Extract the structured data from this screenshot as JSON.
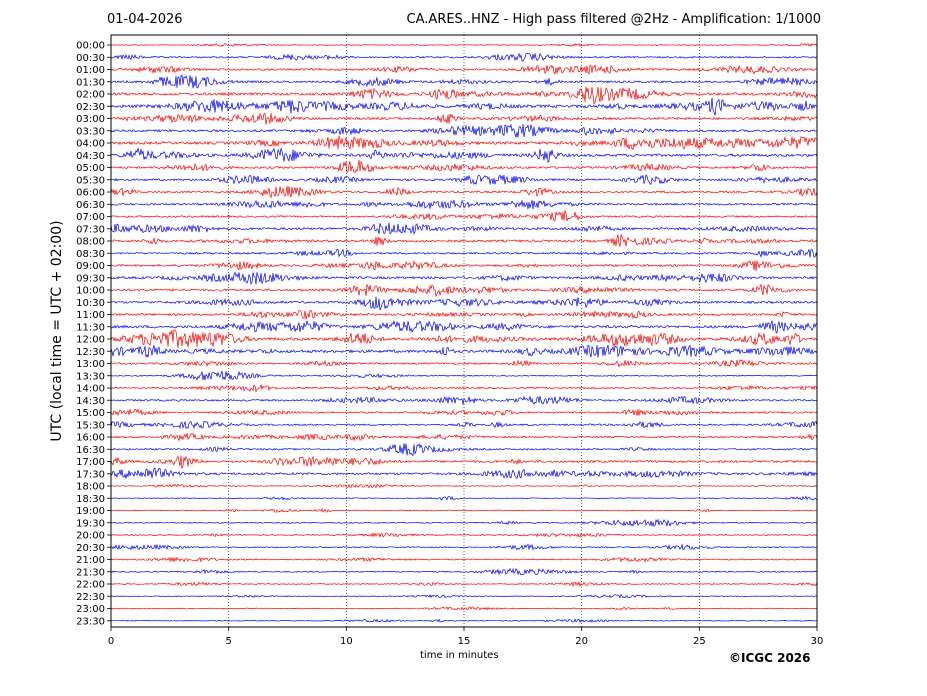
{
  "header": {
    "date": "01-04-2026",
    "title": "CA.ARES..HNZ - High pass filtered @2Hz - Amplification: 1/1000"
  },
  "footer": {
    "credit": "©ICGC 2026"
  },
  "chart_data": {
    "type": "line",
    "subtype": "helicorder",
    "xlabel": "time in minutes",
    "ylabel": "UTC (local time = UTC + 02:00)",
    "xlim": [
      0,
      30
    ],
    "x_ticks": [
      0,
      5,
      10,
      15,
      20,
      25,
      30
    ],
    "grid": "vertical dotted lines at x ticks",
    "trace_colors": [
      "#ff0000",
      "#0000ff"
    ],
    "rows": [
      {
        "label": "00:00",
        "activity": 0.05
      },
      {
        "label": "00:30",
        "activity": 0.35
      },
      {
        "label": "01:00",
        "activity": 0.45
      },
      {
        "label": "01:30",
        "activity": 0.45
      },
      {
        "label": "02:00",
        "activity": 0.7
      },
      {
        "label": "02:30",
        "activity": 0.85
      },
      {
        "label": "03:00",
        "activity": 0.6
      },
      {
        "label": "03:30",
        "activity": 0.55
      },
      {
        "label": "04:00",
        "activity": 0.75
      },
      {
        "label": "04:30",
        "activity": 0.7
      },
      {
        "label": "05:00",
        "activity": 0.5
      },
      {
        "label": "05:30",
        "activity": 0.5
      },
      {
        "label": "06:00",
        "activity": 0.45
      },
      {
        "label": "06:30",
        "activity": 0.45
      },
      {
        "label": "07:00",
        "activity": 0.4
      },
      {
        "label": "07:30",
        "activity": 0.6
      },
      {
        "label": "08:00",
        "activity": 0.6
      },
      {
        "label": "08:30",
        "activity": 0.4
      },
      {
        "label": "09:00",
        "activity": 0.5
      },
      {
        "label": "09:30",
        "activity": 0.6
      },
      {
        "label": "10:00",
        "activity": 0.55
      },
      {
        "label": "10:30",
        "activity": 0.55
      },
      {
        "label": "11:00",
        "activity": 0.55
      },
      {
        "label": "11:30",
        "activity": 0.7
      },
      {
        "label": "12:00",
        "activity": 0.85
      },
      {
        "label": "12:30",
        "activity": 0.8
      },
      {
        "label": "13:00",
        "activity": 0.4
      },
      {
        "label": "13:30",
        "activity": 0.2
      },
      {
        "label": "14:00",
        "activity": 0.3
      },
      {
        "label": "14:30",
        "activity": 0.4
      },
      {
        "label": "15:00",
        "activity": 0.35
      },
      {
        "label": "15:30",
        "activity": 0.35
      },
      {
        "label": "16:00",
        "activity": 0.35
      },
      {
        "label": "16:30",
        "activity": 0.35
      },
      {
        "label": "17:00",
        "activity": 0.55
      },
      {
        "label": "17:30",
        "activity": 0.55
      },
      {
        "label": "18:00",
        "activity": 0.1
      },
      {
        "label": "18:30",
        "activity": 0.1
      },
      {
        "label": "19:00",
        "activity": 0.15
      },
      {
        "label": "19:30",
        "activity": 0.15
      },
      {
        "label": "20:00",
        "activity": 0.15
      },
      {
        "label": "20:30",
        "activity": 0.2
      },
      {
        "label": "21:00",
        "activity": 0.2
      },
      {
        "label": "21:30",
        "activity": 0.2
      },
      {
        "label": "22:00",
        "activity": 0.15
      },
      {
        "label": "22:30",
        "activity": 0.05
      },
      {
        "label": "23:00",
        "activity": 0.05
      },
      {
        "label": "23:30",
        "activity": 0.05
      }
    ]
  }
}
